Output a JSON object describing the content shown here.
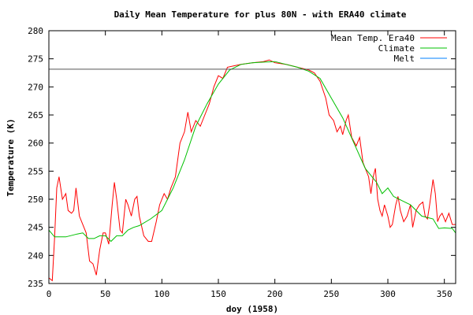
{
  "chart_data": {
    "type": "line",
    "title": "Daily Mean Temperature for plus 80N - with ERA40 climate",
    "xlabel": "doy (1958)",
    "ylabel": "Temperature (K)",
    "xlim": [
      0,
      360
    ],
    "ylim": [
      235,
      280
    ],
    "xticks": [
      0,
      50,
      100,
      150,
      200,
      250,
      300,
      350
    ],
    "yticks": [
      235,
      240,
      245,
      250,
      255,
      260,
      265,
      270,
      275,
      280
    ],
    "grid": false,
    "legend_position": "top-right",
    "series": [
      {
        "name": "Mean Temp. Era40",
        "color": "#ff0000",
        "x": [
          0,
          3,
          5,
          7,
          9,
          12,
          15,
          17,
          20,
          22,
          24,
          27,
          30,
          33,
          36,
          39,
          42,
          45,
          48,
          50,
          53,
          56,
          58,
          60,
          63,
          65,
          68,
          70,
          73,
          76,
          78,
          80,
          84,
          88,
          91,
          95,
          98,
          102,
          105,
          108,
          112,
          116,
          120,
          123,
          126,
          130,
          134,
          138,
          142,
          146,
          150,
          154,
          158,
          165,
          170,
          180,
          190,
          195,
          200,
          210,
          220,
          230,
          235,
          240,
          245,
          248,
          252,
          255,
          258,
          260,
          263,
          265,
          268,
          272,
          275,
          278,
          283,
          285,
          287,
          289,
          291,
          293,
          295,
          297,
          300,
          302,
          304,
          307,
          309,
          311,
          314,
          317,
          320,
          322,
          325,
          328,
          331,
          333,
          335,
          337,
          340,
          342,
          344,
          346,
          348,
          351,
          354,
          357,
          360
        ],
        "y": [
          236,
          235.5,
          243,
          252,
          254,
          250,
          251,
          248,
          247.5,
          248,
          252,
          247,
          245.5,
          244,
          239,
          238.5,
          236.5,
          241,
          244,
          244,
          242,
          249,
          253,
          250,
          244.5,
          244,
          250,
          249,
          247,
          250,
          250.5,
          247,
          243.5,
          242.5,
          242.5,
          246,
          249,
          251,
          250,
          252,
          254,
          260,
          262,
          265.5,
          262,
          264,
          263,
          265,
          267,
          270,
          272,
          271.5,
          273.5,
          273.8,
          274,
          274.3,
          274.5,
          274.8,
          274.3,
          274,
          273.5,
          273,
          272.5,
          271,
          268,
          265,
          264,
          262,
          263,
          261.5,
          264,
          265,
          261,
          259.5,
          261,
          256.5,
          254,
          251,
          254,
          255.5,
          250,
          248,
          247,
          249,
          247,
          245,
          245.5,
          249,
          250.5,
          248,
          246,
          247,
          249,
          245,
          248,
          249,
          249.5,
          247,
          246.5,
          249,
          253.5,
          251,
          246,
          247,
          247.5,
          246,
          247.5,
          245.5,
          245.5
        ]
      },
      {
        "name": "Climate",
        "color": "#00c000",
        "x": [
          0,
          5,
          15,
          25,
          30,
          35,
          40,
          45,
          50,
          55,
          60,
          65,
          70,
          75,
          80,
          90,
          100,
          110,
          120,
          130,
          140,
          150,
          160,
          170,
          180,
          190,
          200,
          210,
          220,
          230,
          240,
          250,
          260,
          270,
          280,
          290,
          295,
          300,
          305,
          310,
          315,
          320,
          330,
          340,
          345,
          350,
          357,
          360
        ],
        "y": [
          244.5,
          243.3,
          243.3,
          243.8,
          244,
          243,
          243,
          243.5,
          243.5,
          242.5,
          243.5,
          243.5,
          244.5,
          245,
          245.3,
          246.5,
          248,
          252,
          257,
          263,
          267,
          270.5,
          273,
          274,
          274.3,
          274.4,
          274.5,
          274,
          273.5,
          272.8,
          271.5,
          268,
          264.5,
          260,
          255.5,
          253,
          251,
          252,
          250.5,
          250,
          249.5,
          249,
          247,
          246.5,
          244.8,
          244.9,
          244.8,
          244
        ]
      },
      {
        "name": "Melt",
        "color": "#0080ff",
        "constant": 273.15
      }
    ]
  }
}
